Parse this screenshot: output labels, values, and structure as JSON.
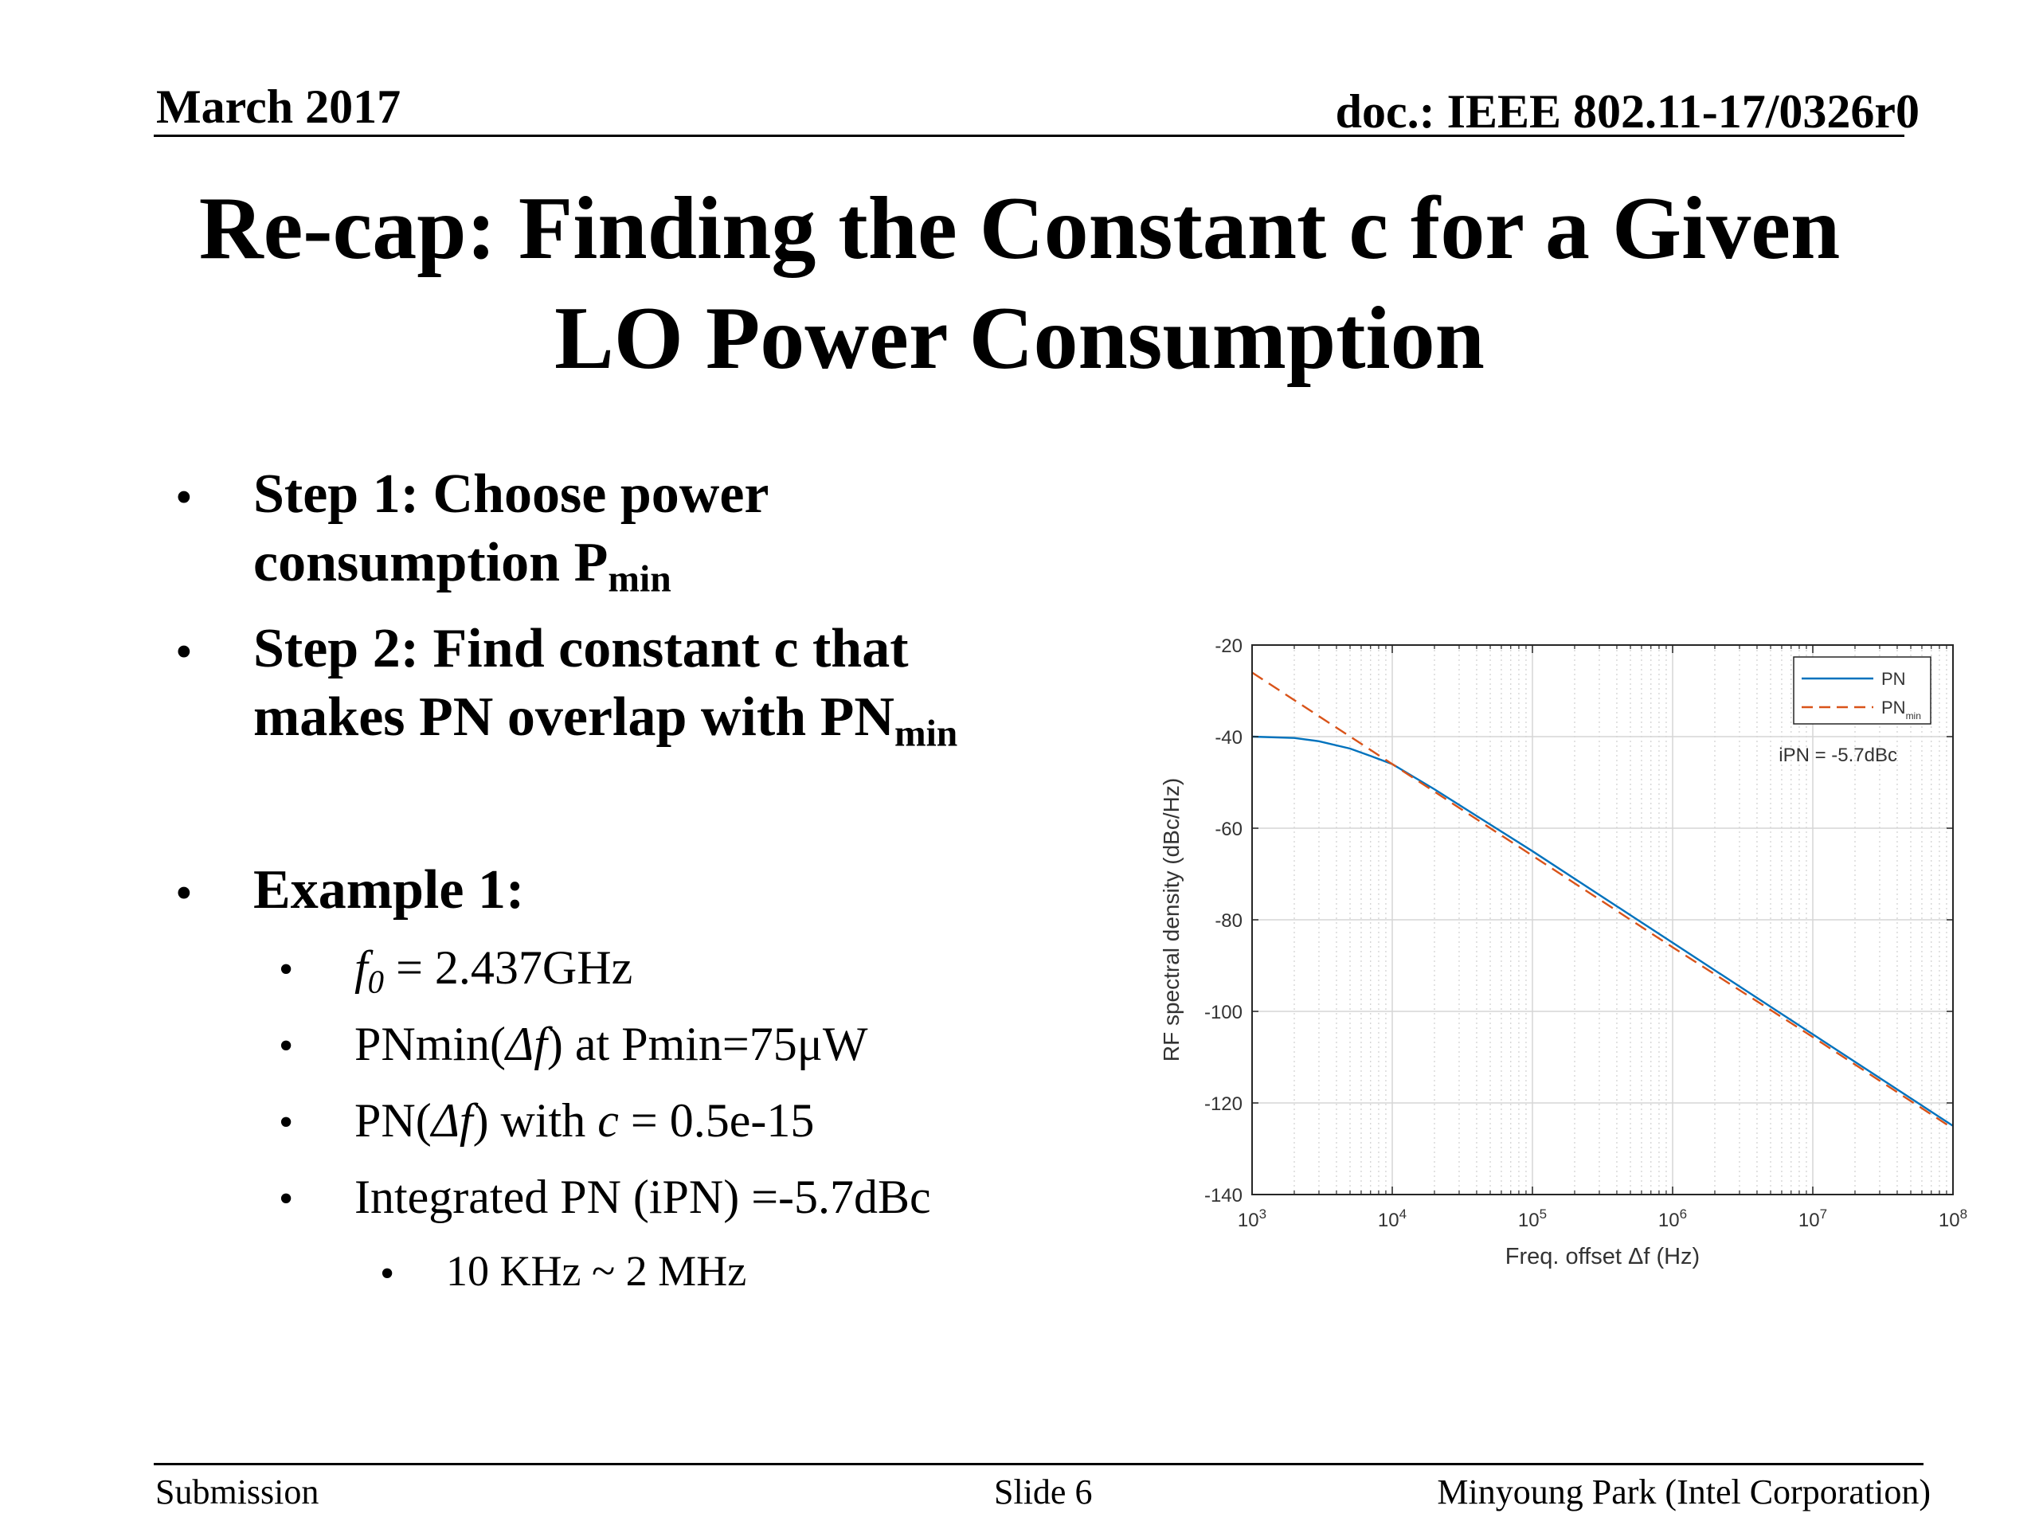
{
  "header": {
    "date": "March 2017",
    "doc": "doc.: IEEE 802.11-17/0326r0"
  },
  "title": {
    "line1": "Re-cap: Finding the Constant c for a Given",
    "line2": "LO Power Consumption"
  },
  "bullets": {
    "step1_line1": "Step 1: Choose power",
    "step1_line2": "consumption P",
    "step1_sub": "min",
    "step2_line1": "Step 2: Find constant c that",
    "step2_line2": "makes PN overlap with PN",
    "step2_sub": "min",
    "example": "Example 1:",
    "items": {
      "f0_var": "f",
      "f0_sub": "0",
      "f0_rest": " = 2.437GHz",
      "pnmin_a": "PNmin(",
      "pnmin_var": "Δf",
      "pnmin_b": ") at Pmin=75μW",
      "pn_a": "PN(",
      "pn_var": "Δf",
      "pn_b": ") with ",
      "pn_c": "c",
      "pn_d": " = 0.5e-15",
      "ipn": "Integrated PN (iPN) =-5.7dBc",
      "range": "10 KHz ~ 2 MHz"
    },
    "bullet_char": "•"
  },
  "chart_data": {
    "type": "line",
    "x_scale": "log",
    "xlim": [
      1000,
      100000000
    ],
    "ylim": [
      -140,
      -20
    ],
    "xlabel": "Freq. offset Δf (Hz)",
    "ylabel": "RF spectral density (dBc/Hz)",
    "xticks": [
      1000,
      10000,
      100000,
      1000000,
      10000000,
      100000000
    ],
    "xtick_labels": [
      {
        "base": "10",
        "exp": "3"
      },
      {
        "base": "10",
        "exp": "4"
      },
      {
        "base": "10",
        "exp": "5"
      },
      {
        "base": "10",
        "exp": "6"
      },
      {
        "base": "10",
        "exp": "7"
      },
      {
        "base": "10",
        "exp": "8"
      }
    ],
    "yticks": [
      -20,
      -40,
      -60,
      -80,
      -100,
      -120,
      -140
    ],
    "ytick_labels": [
      "-20",
      "-40",
      "-60",
      "-80",
      "-100",
      "-120",
      "-140"
    ],
    "grid": true,
    "legend_position": "top-right",
    "legend": [
      {
        "label": "PN",
        "sub": ""
      },
      {
        "label": "PN",
        "sub": "min"
      }
    ],
    "annotation": "iPN = -5.7dBc",
    "series": [
      {
        "name": "PN",
        "color": "#0072bd",
        "style": "solid",
        "x": [
          1000,
          2000,
          3000,
          5000,
          7000,
          10000,
          20000,
          50000,
          100000,
          1000000,
          10000000,
          100000000
        ],
        "y": [
          -40,
          -40.3,
          -41,
          -42.6,
          -44.2,
          -46,
          -51.5,
          -59.2,
          -65,
          -85,
          -105,
          -125
        ]
      },
      {
        "name": "PN",
        "color": "#d95319",
        "style": "dashed",
        "x": [
          1000,
          10000,
          100000,
          1000000,
          10000000,
          100000000
        ],
        "y": [
          -26,
          -46,
          -66,
          -86,
          -105.6,
          -125.6
        ]
      }
    ]
  },
  "footer": {
    "left": "Submission",
    "center": "Slide 6",
    "right": "Minyoung Park (Intel Corporation)"
  }
}
